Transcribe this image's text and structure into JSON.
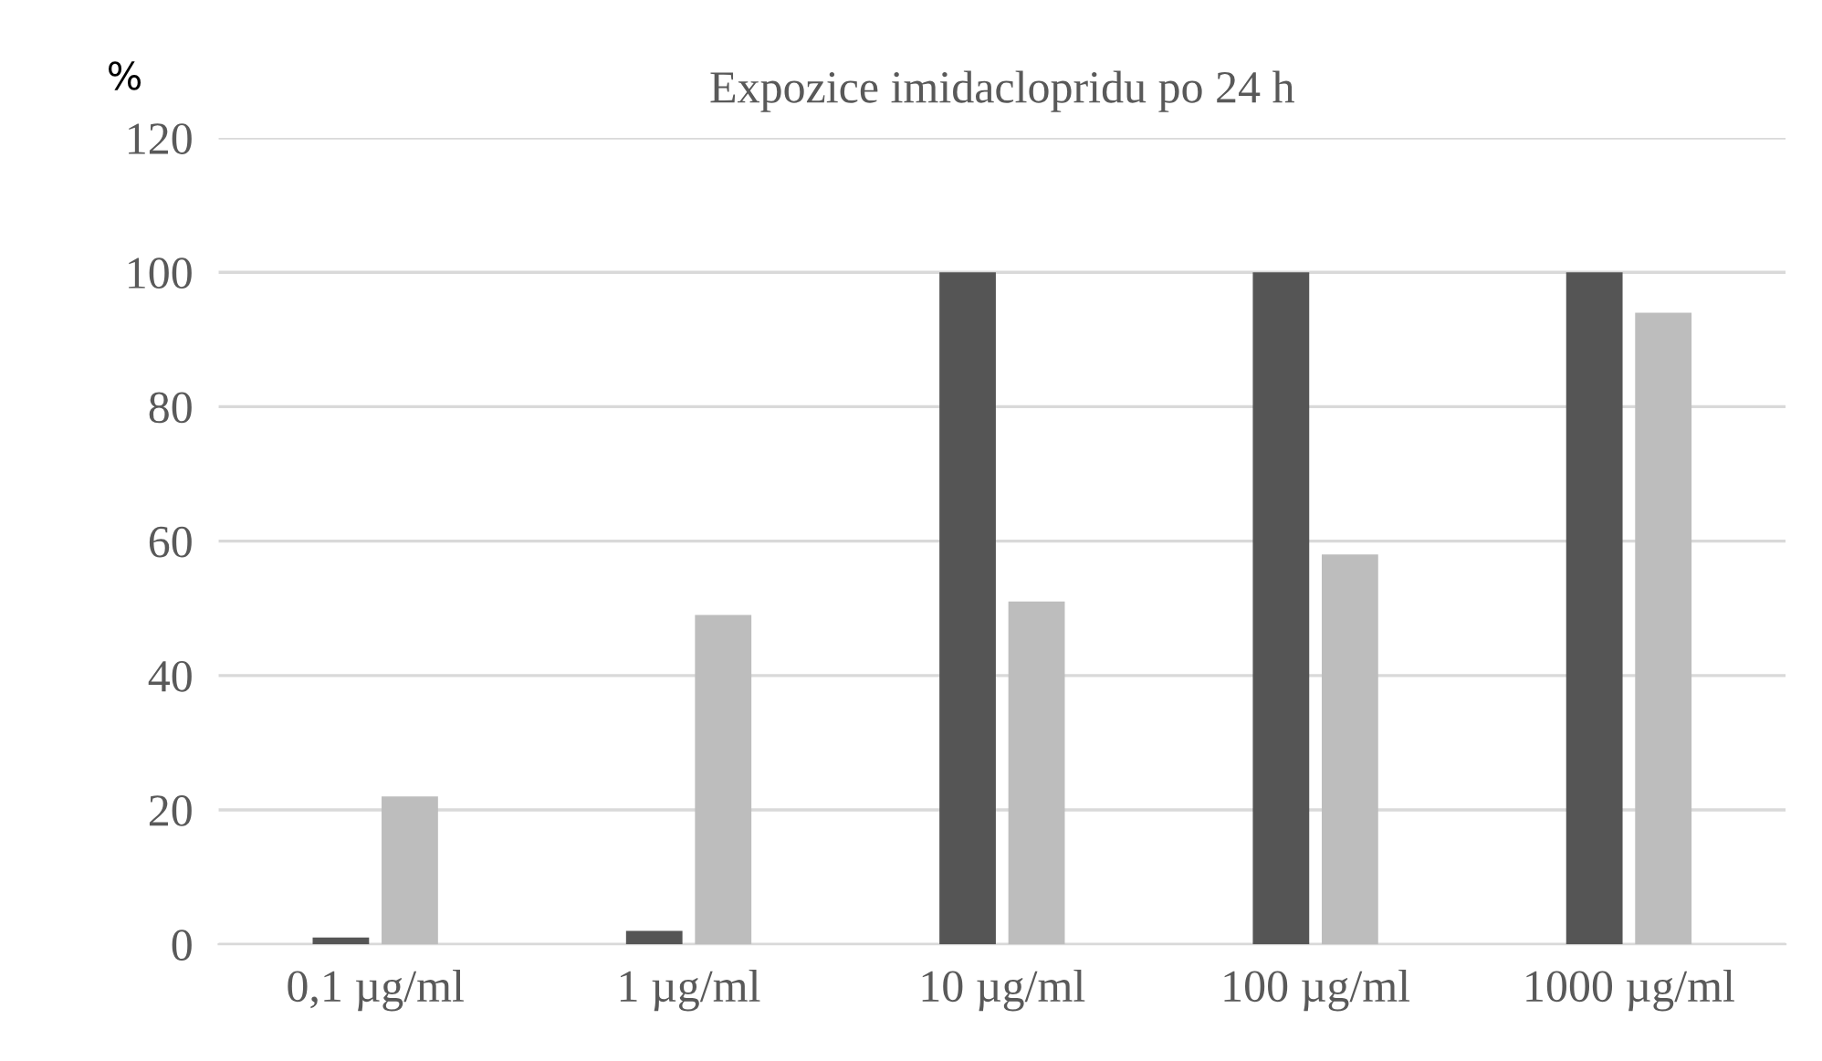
{
  "chart_data": {
    "type": "bar",
    "title": "Expozice imidaclopridu po 24 h",
    "ylabel": "%",
    "categories": [
      "0,1 µg/ml",
      "1 µg/ml",
      "10 µg/ml",
      "100 µg/ml",
      "1000 µg/ml"
    ],
    "series": [
      {
        "color": "#555555",
        "values": [
          1,
          2,
          100,
          100,
          100
        ]
      },
      {
        "color": "#bdbdbd",
        "values": [
          22,
          49,
          51,
          58,
          94
        ]
      }
    ],
    "ylim": [
      0,
      120
    ],
    "yticks": [
      0,
      20,
      40,
      60,
      80,
      100,
      120
    ],
    "grid": "y",
    "legend": false
  }
}
